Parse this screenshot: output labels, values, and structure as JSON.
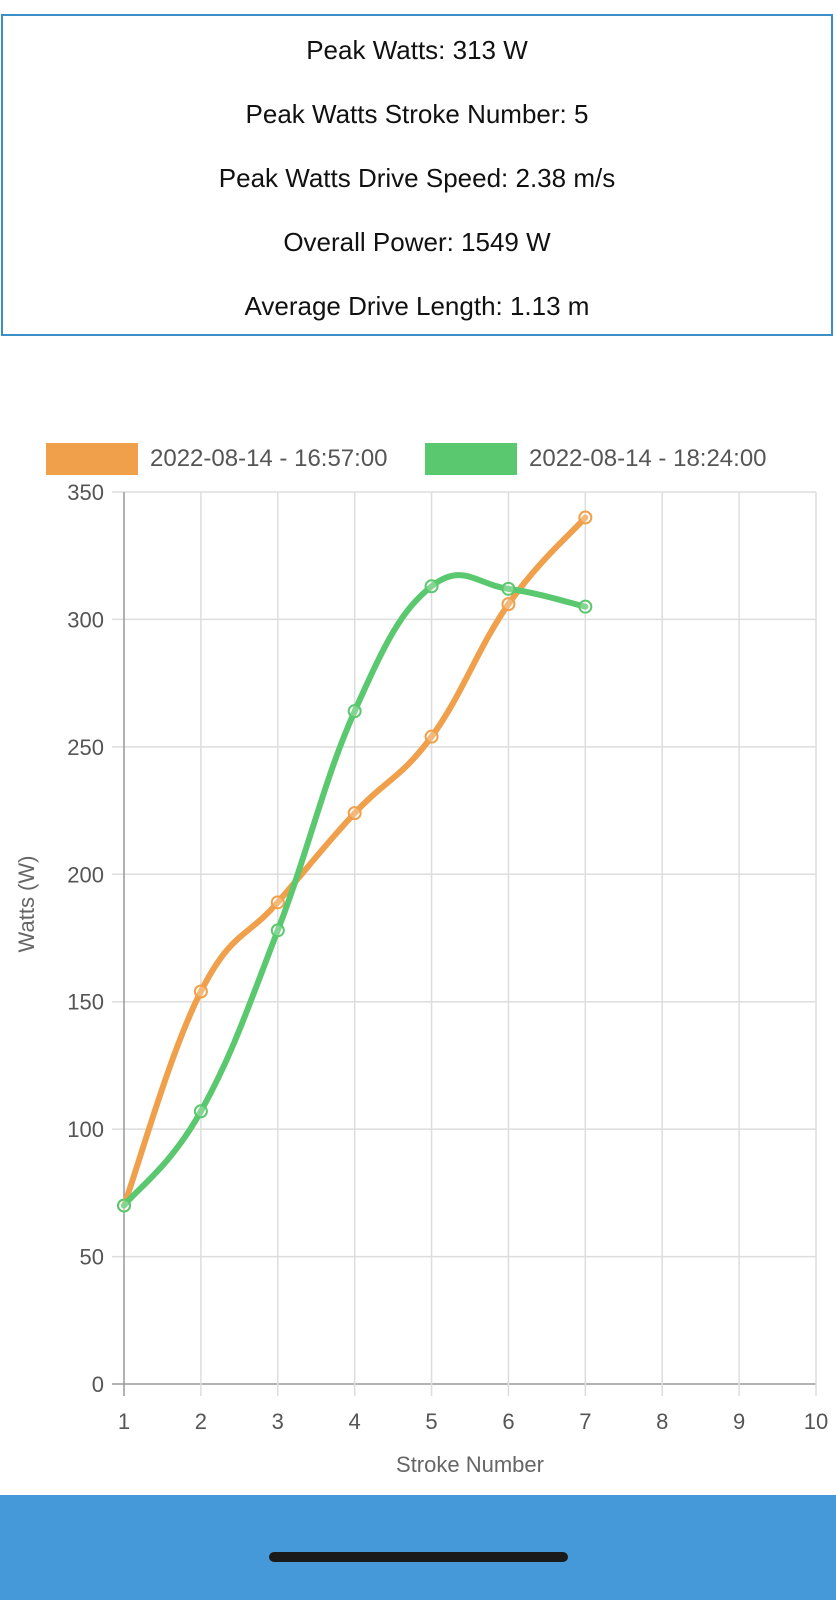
{
  "stats": {
    "peak_watts": "Peak Watts: 313 W",
    "peak_watts_stroke": "Peak Watts Stroke Number: 5",
    "peak_watts_drive_speed": "Peak Watts Drive Speed: 2.38 m/s",
    "overall_power": "Overall Power: 1549 W",
    "average_drive_length": "Average Drive Length: 1.13 m"
  },
  "chart_data": {
    "type": "line",
    "xlabel": "Stroke Number",
    "ylabel": "Watts (W)",
    "xlim": [
      1,
      10
    ],
    "ylim": [
      0,
      350
    ],
    "x_ticks": [
      "1",
      "2",
      "3",
      "4",
      "5",
      "6",
      "7",
      "8",
      "9",
      "10"
    ],
    "y_ticks": [
      "0",
      "50",
      "100",
      "150",
      "200",
      "250",
      "300",
      "350"
    ],
    "grid": true,
    "legend_position": "top",
    "series": [
      {
        "name": "2022-08-14 - 16:57:00",
        "color": "#f0a04b",
        "x": [
          1,
          2,
          3,
          4,
          5,
          6,
          7
        ],
        "values": [
          70,
          154,
          189,
          224,
          254,
          306,
          340
        ]
      },
      {
        "name": "2022-08-14 - 18:24:00",
        "color": "#5ac86e",
        "x": [
          1,
          2,
          3,
          4,
          5,
          6,
          7
        ],
        "values": [
          70,
          107,
          178,
          264,
          313,
          312,
          305
        ]
      }
    ]
  },
  "colors": {
    "stats_border": "#3b8fc7",
    "footer_bar": "#4599d8",
    "grid": "#dddddd",
    "axis_text": "#555555"
  }
}
